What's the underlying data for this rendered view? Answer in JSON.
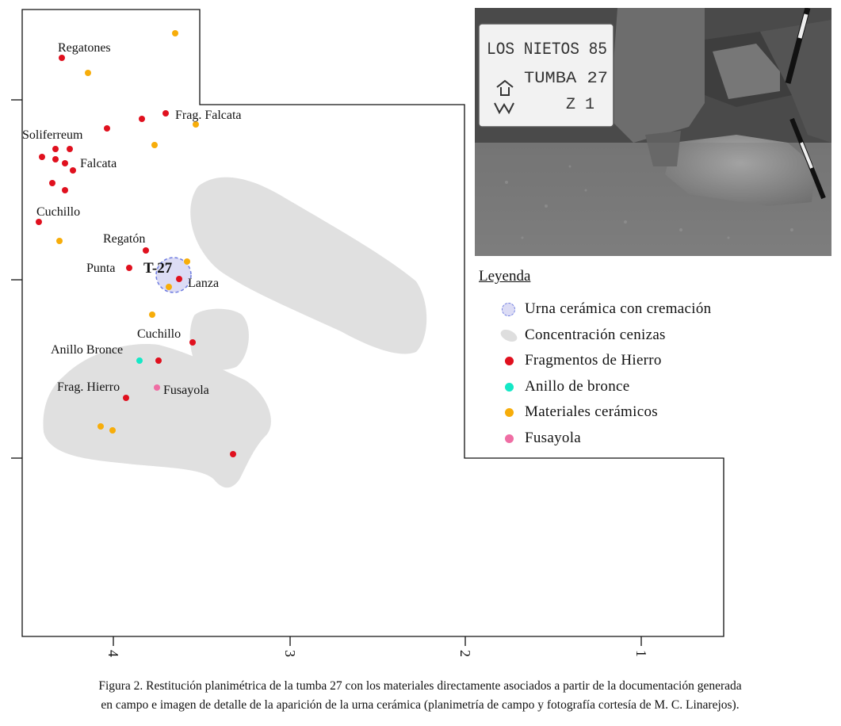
{
  "plan": {
    "x_ticks": [
      "4",
      "3",
      "2",
      "1"
    ],
    "tomb_label": "T-27",
    "labels": {
      "regatones": "Regatones",
      "frag_falcata": "Frag. Falcata",
      "soliferreum": "Soliferreum",
      "falcata": "Falcata",
      "cuchillo_top": "Cuchillo",
      "regaton": "Regatón",
      "punta": "Punta",
      "lanza": "Lanza",
      "cuchillo_mid": "Cuchillo",
      "anillo_bronce": "Anillo Bronce",
      "frag_hierro": "Frag. Hierro",
      "fusayola": "Fusayola"
    },
    "colors": {
      "iron": "#e0101e",
      "bronze": "#14e8c6",
      "ceramic": "#f7ad0a",
      "spindle": "#ef6ea4",
      "ash": "#e0e0e0",
      "urn_fill": "#dcdcf5",
      "urn_stroke": "#6f7de0"
    }
  },
  "photo": {
    "sign_line1": "LOS NIETOS 85",
    "sign_line2": "TUMBA 27",
    "sign_line3": "Z 1"
  },
  "legend": {
    "title": "Leyenda",
    "items": [
      {
        "label": "Urna cerámica con cremación",
        "symbol": "urn"
      },
      {
        "label": "Concentración cenizas",
        "symbol": "ash"
      },
      {
        "label": "Fragmentos de Hierro",
        "symbol": "iron"
      },
      {
        "label": "Anillo de bronce",
        "symbol": "bronze"
      },
      {
        "label": "Materiales cerámicos",
        "symbol": "ceramic"
      },
      {
        "label": "Fusayola",
        "symbol": "spindle"
      }
    ]
  },
  "caption": {
    "line1": "Figura 2. Restitución planimétrica de la tumba 27 con los materiales directamente asociados a partir de la documentación generada",
    "line2": "en campo e imagen de detalle de la aparición de la urna cerámica (planimetría de campo y fotografía cortesía de M. C. Linarejos)."
  }
}
